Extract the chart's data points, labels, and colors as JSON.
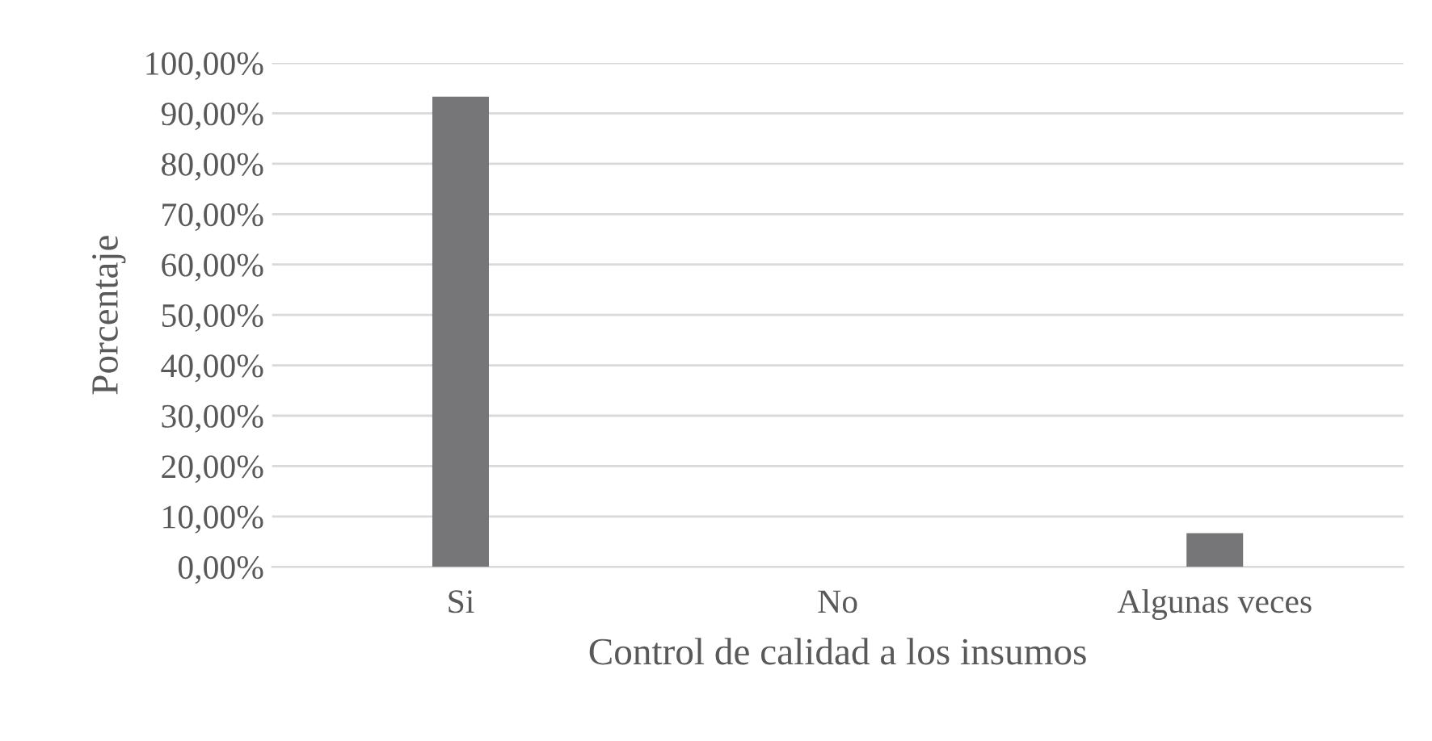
{
  "chart_data": {
    "type": "bar",
    "xlabel": "Control de calidad a los insumos",
    "ylabel": "Porcentaje",
    "categories": [
      "Si",
      "No",
      "Algunas veces"
    ],
    "values": [
      93.3,
      0,
      6.7
    ],
    "color": "#767679",
    "ylim": [
      0,
      100
    ],
    "yticks": [
      {
        "value": 0,
        "label": "0,00%"
      },
      {
        "value": 10,
        "label": "10,00%"
      },
      {
        "value": 20,
        "label": "20,00%"
      },
      {
        "value": 30,
        "label": "30,00%"
      },
      {
        "value": 40,
        "label": "40,00%"
      },
      {
        "value": 50,
        "label": "50,00%"
      },
      {
        "value": 60,
        "label": "60,00%"
      },
      {
        "value": 70,
        "label": "70,00%"
      },
      {
        "value": 80,
        "label": "80,00%"
      },
      {
        "value": 90,
        "label": "90,00%"
      },
      {
        "value": 100,
        "label": "100,00%"
      }
    ],
    "grid": "y"
  }
}
